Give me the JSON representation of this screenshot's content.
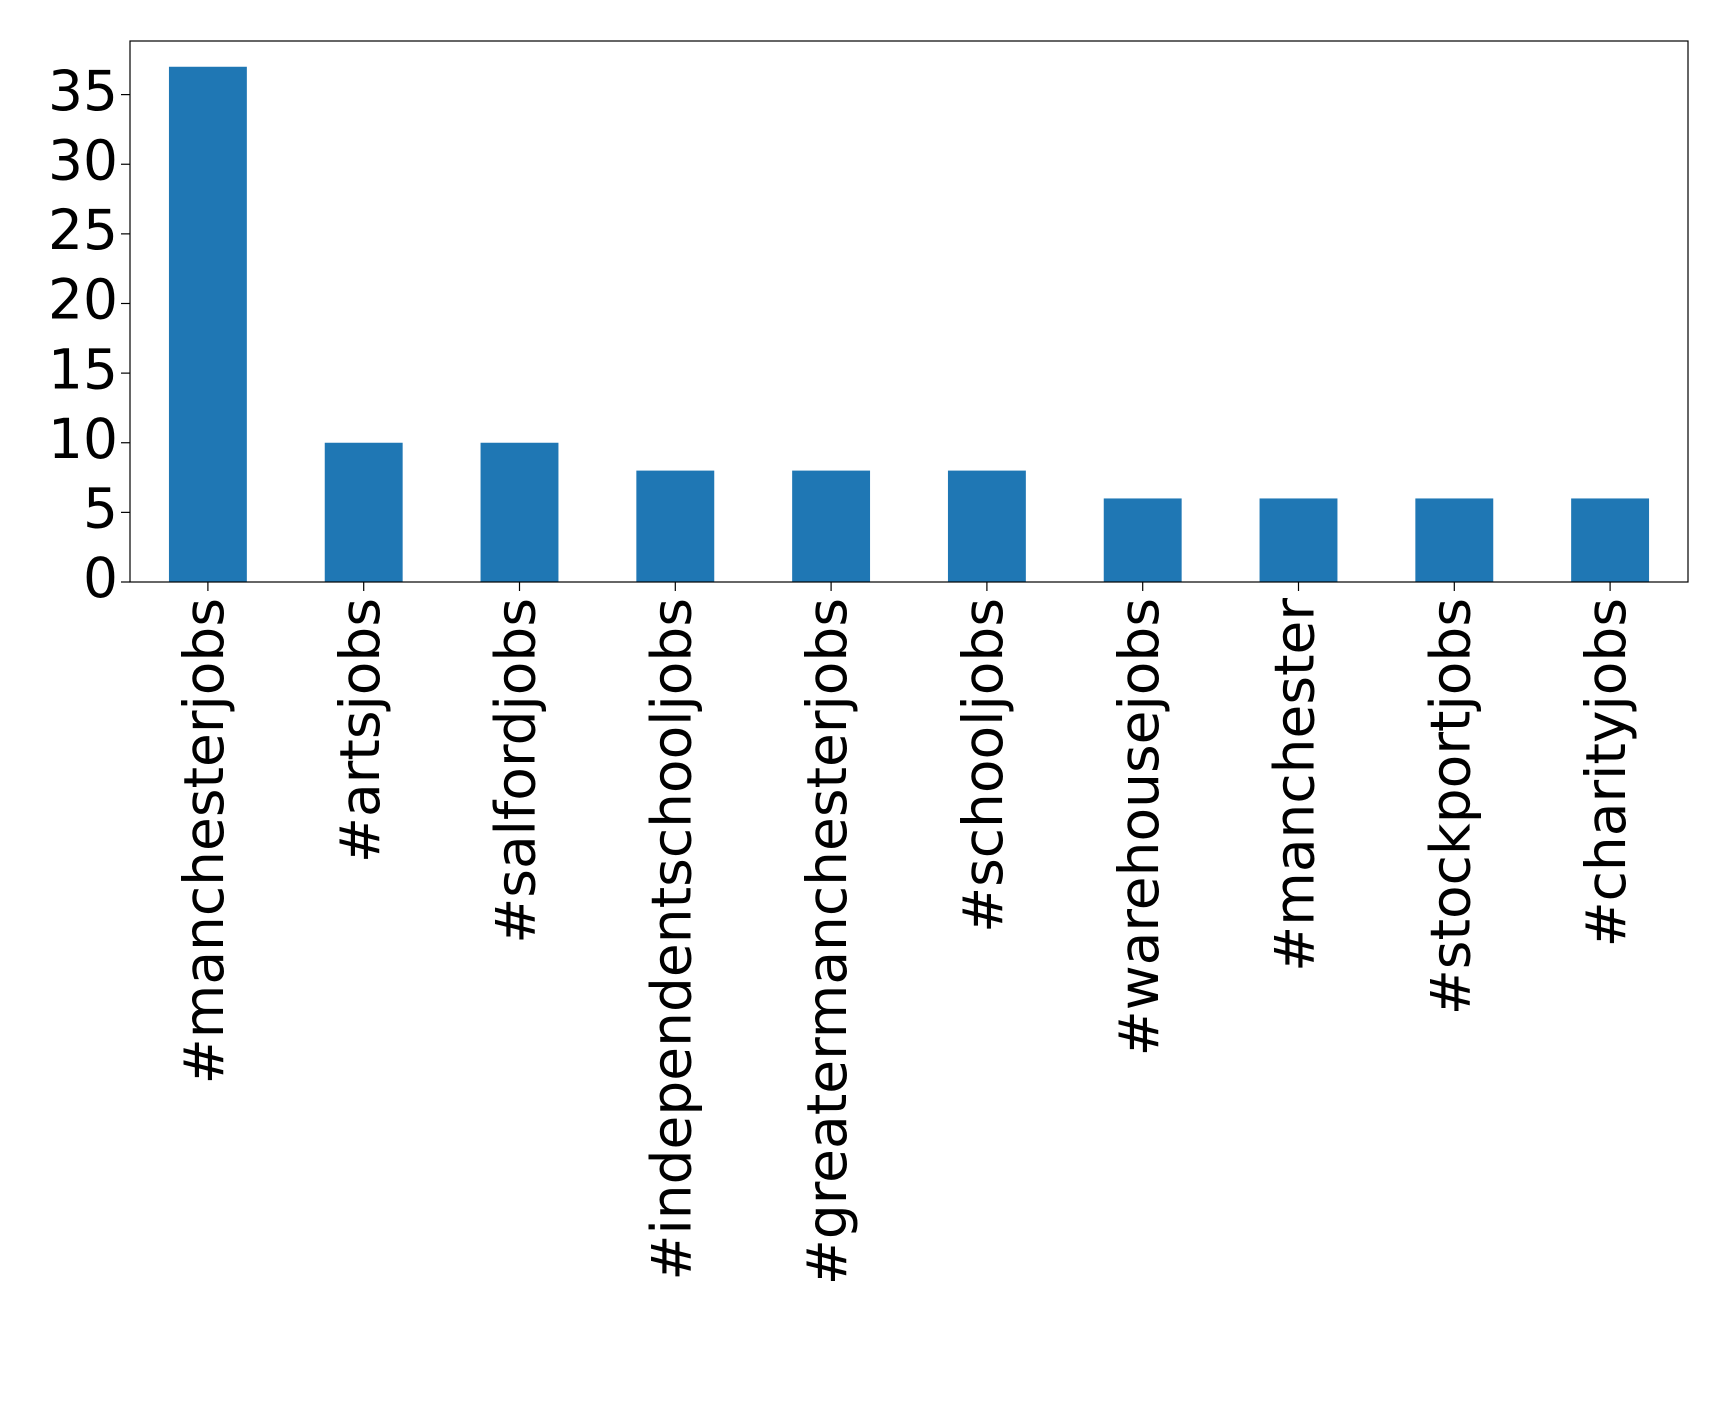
{
  "chart_data": {
    "type": "bar",
    "categories": [
      "#manchesterjobs",
      "#artsjobs",
      "#salfordjobs",
      "#independentschooljobs",
      "#greatermanchesterjobs",
      "#schooljobs",
      "#warehousejobs",
      "#manchester",
      "#stockportjobs",
      "#charityjobs"
    ],
    "values": [
      37,
      10,
      10,
      8,
      8,
      8,
      6,
      6,
      6,
      6
    ],
    "color": "#1f77b4",
    "ylim": [
      0,
      38.85
    ],
    "yticks": [
      0,
      5,
      10,
      15,
      20,
      25,
      30,
      35
    ]
  }
}
